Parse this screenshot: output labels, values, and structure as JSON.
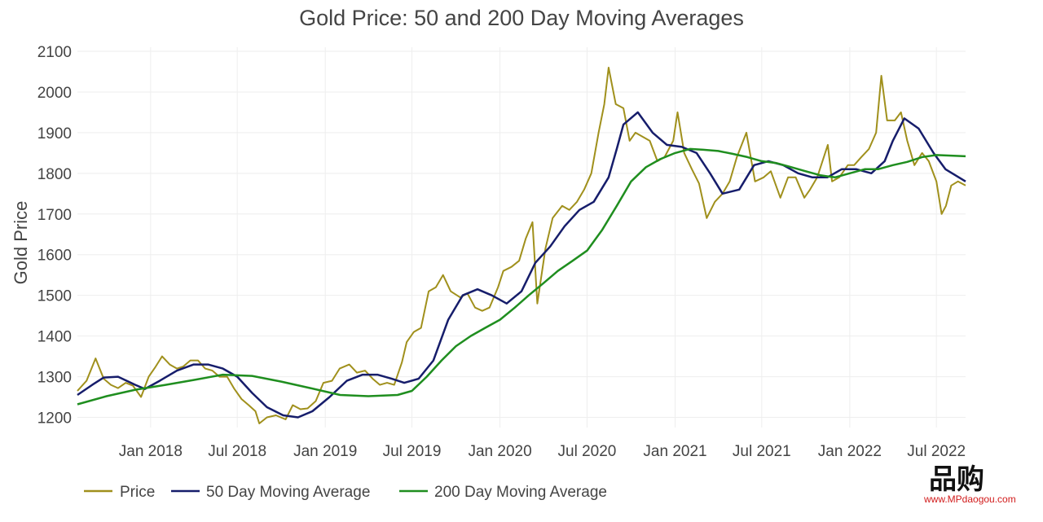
{
  "watermark": {
    "text": "品购",
    "url": "www.MPdaogou.com"
  },
  "colors": {
    "price": "#a0901c",
    "ma50": "#161d6b",
    "ma200": "#1f8e1f"
  },
  "chart_data": {
    "type": "line",
    "title": "Gold Price: 50 and 200 Day Moving Averages",
    "xlabel": "",
    "ylabel": "Gold Price",
    "xlim": [
      "2017-08-01",
      "2022-08-31"
    ],
    "ylim": [
      1175,
      2110
    ],
    "yticks": [
      1200,
      1300,
      1400,
      1500,
      1600,
      1700,
      1800,
      1900,
      2000,
      2100
    ],
    "xticks": [
      {
        "date": "2018-01-01",
        "label": "Jan 2018"
      },
      {
        "date": "2018-07-01",
        "label": "Jul 2018"
      },
      {
        "date": "2019-01-01",
        "label": "Jan 2019"
      },
      {
        "date": "2019-07-01",
        "label": "Jul 2019"
      },
      {
        "date": "2020-01-01",
        "label": "Jan 2020"
      },
      {
        "date": "2020-07-01",
        "label": "Jul 2020"
      },
      {
        "date": "2021-01-01",
        "label": "Jan 2021"
      },
      {
        "date": "2021-07-01",
        "label": "Jul 2021"
      },
      {
        "date": "2022-01-01",
        "label": "Jan 2022"
      },
      {
        "date": "2022-07-01",
        "label": "Jul 2022"
      }
    ],
    "legend_position": "bottom-left",
    "grid": true,
    "series": [
      {
        "name": "Price",
        "x": [
          "2017-08-01",
          "2017-08-20",
          "2017-09-08",
          "2017-09-25",
          "2017-10-10",
          "2017-10-25",
          "2017-11-10",
          "2017-11-25",
          "2017-12-12",
          "2017-12-28",
          "2018-01-10",
          "2018-01-25",
          "2018-02-10",
          "2018-02-25",
          "2018-03-10",
          "2018-03-25",
          "2018-04-10",
          "2018-04-25",
          "2018-05-10",
          "2018-05-25",
          "2018-06-10",
          "2018-06-25",
          "2018-07-10",
          "2018-07-25",
          "2018-08-08",
          "2018-08-16",
          "2018-09-01",
          "2018-09-20",
          "2018-10-10",
          "2018-10-25",
          "2018-11-10",
          "2018-11-25",
          "2018-12-12",
          "2018-12-28",
          "2019-01-15",
          "2019-01-31",
          "2019-02-20",
          "2019-03-08",
          "2019-03-25",
          "2019-04-10",
          "2019-04-25",
          "2019-05-10",
          "2019-05-25",
          "2019-06-10",
          "2019-06-20",
          "2019-07-05",
          "2019-07-20",
          "2019-08-05",
          "2019-08-20",
          "2019-09-04",
          "2019-09-20",
          "2019-10-10",
          "2019-10-25",
          "2019-11-10",
          "2019-11-25",
          "2019-12-10",
          "2019-12-28",
          "2020-01-08",
          "2020-01-25",
          "2020-02-10",
          "2020-02-24",
          "2020-03-09",
          "2020-03-19",
          "2020-04-05",
          "2020-04-20",
          "2020-05-10",
          "2020-05-25",
          "2020-06-10",
          "2020-06-25",
          "2020-07-10",
          "2020-07-25",
          "2020-08-06",
          "2020-08-15",
          "2020-08-30",
          "2020-09-15",
          "2020-09-28",
          "2020-10-10",
          "2020-10-25",
          "2020-11-09",
          "2020-11-25",
          "2020-12-10",
          "2020-12-28",
          "2021-01-06",
          "2021-01-20",
          "2021-02-05",
          "2021-02-20",
          "2021-03-08",
          "2021-03-25",
          "2021-04-10",
          "2021-04-25",
          "2021-05-10",
          "2021-05-30",
          "2021-06-17",
          "2021-07-05",
          "2021-07-20",
          "2021-08-09",
          "2021-08-25",
          "2021-09-10",
          "2021-09-28",
          "2021-10-10",
          "2021-10-25",
          "2021-11-16",
          "2021-11-25",
          "2021-12-10",
          "2021-12-28",
          "2022-01-10",
          "2022-01-25",
          "2022-02-10",
          "2022-02-25",
          "2022-03-08",
          "2022-03-20",
          "2022-04-05",
          "2022-04-18",
          "2022-05-01",
          "2022-05-16",
          "2022-06-01",
          "2022-06-15",
          "2022-07-01",
          "2022-07-12",
          "2022-07-21",
          "2022-08-01",
          "2022-08-15",
          "2022-08-31"
        ],
        "y": [
          1265,
          1290,
          1345,
          1295,
          1280,
          1272,
          1285,
          1278,
          1250,
          1300,
          1322,
          1350,
          1330,
          1320,
          1325,
          1340,
          1340,
          1320,
          1315,
          1300,
          1300,
          1270,
          1245,
          1230,
          1215,
          1185,
          1200,
          1205,
          1195,
          1230,
          1220,
          1222,
          1240,
          1285,
          1290,
          1320,
          1330,
          1310,
          1315,
          1295,
          1280,
          1285,
          1280,
          1335,
          1385,
          1410,
          1420,
          1510,
          1520,
          1550,
          1510,
          1495,
          1505,
          1470,
          1462,
          1470,
          1520,
          1560,
          1570,
          1585,
          1640,
          1680,
          1480,
          1615,
          1690,
          1720,
          1710,
          1730,
          1760,
          1800,
          1900,
          1970,
          2060,
          1970,
          1960,
          1880,
          1900,
          1890,
          1880,
          1830,
          1840,
          1880,
          1950,
          1850,
          1810,
          1775,
          1690,
          1730,
          1750,
          1780,
          1840,
          1900,
          1780,
          1790,
          1805,
          1740,
          1790,
          1790,
          1740,
          1760,
          1790,
          1870,
          1780,
          1790,
          1820,
          1820,
          1840,
          1860,
          1900,
          2040,
          1930,
          1930,
          1950,
          1880,
          1820,
          1850,
          1830,
          1780,
          1700,
          1720,
          1770,
          1780,
          1770
        ]
      },
      {
        "name": "50 Day Moving Average",
        "x": [
          "2017-08-01",
          "2017-09-01",
          "2017-09-25",
          "2017-10-25",
          "2017-11-30",
          "2017-12-20",
          "2018-01-20",
          "2018-02-25",
          "2018-04-01",
          "2018-05-01",
          "2018-06-01",
          "2018-07-01",
          "2018-08-01",
          "2018-09-01",
          "2018-10-05",
          "2018-11-05",
          "2018-12-05",
          "2019-01-10",
          "2019-02-15",
          "2019-03-20",
          "2019-04-20",
          "2019-05-20",
          "2019-06-15",
          "2019-07-15",
          "2019-08-15",
          "2019-09-15",
          "2019-10-15",
          "2019-11-15",
          "2019-12-15",
          "2020-01-15",
          "2020-02-15",
          "2020-03-15",
          "2020-04-15",
          "2020-05-15",
          "2020-06-15",
          "2020-07-15",
          "2020-08-15",
          "2020-09-01",
          "2020-09-15",
          "2020-10-15",
          "2020-11-15",
          "2020-12-15",
          "2021-01-15",
          "2021-02-15",
          "2021-03-15",
          "2021-04-10",
          "2021-05-15",
          "2021-06-15",
          "2021-07-15",
          "2021-08-15",
          "2021-09-15",
          "2021-10-15",
          "2021-11-15",
          "2021-12-15",
          "2022-01-15",
          "2022-02-15",
          "2022-03-15",
          "2022-04-01",
          "2022-04-25",
          "2022-05-25",
          "2022-06-25",
          "2022-07-20",
          "2022-08-31"
        ],
        "y": [
          1255,
          1280,
          1298,
          1300,
          1280,
          1270,
          1290,
          1315,
          1330,
          1330,
          1320,
          1300,
          1260,
          1225,
          1205,
          1200,
          1215,
          1250,
          1290,
          1305,
          1305,
          1295,
          1285,
          1295,
          1340,
          1440,
          1500,
          1515,
          1500,
          1480,
          1510,
          1580,
          1620,
          1670,
          1710,
          1730,
          1790,
          1860,
          1920,
          1950,
          1900,
          1870,
          1865,
          1850,
          1800,
          1750,
          1760,
          1820,
          1830,
          1820,
          1800,
          1790,
          1790,
          1810,
          1810,
          1800,
          1830,
          1880,
          1935,
          1910,
          1850,
          1810,
          1780
        ]
      },
      {
        "name": "200 Day Moving Average",
        "x": [
          "2017-08-01",
          "2017-10-01",
          "2017-12-01",
          "2018-02-01",
          "2018-04-01",
          "2018-06-01",
          "2018-08-01",
          "2018-10-01",
          "2018-12-01",
          "2019-02-01",
          "2019-04-01",
          "2019-06-01",
          "2019-07-01",
          "2019-08-01",
          "2019-09-01",
          "2019-10-01",
          "2019-11-01",
          "2019-12-01",
          "2020-01-01",
          "2020-02-01",
          "2020-03-01",
          "2020-04-01",
          "2020-05-01",
          "2020-06-01",
          "2020-07-01",
          "2020-08-01",
          "2020-09-01",
          "2020-10-01",
          "2020-11-01",
          "2020-12-01",
          "2021-01-01",
          "2021-02-01",
          "2021-03-01",
          "2021-04-01",
          "2021-05-01",
          "2021-06-01",
          "2021-07-01",
          "2021-08-01",
          "2021-09-01",
          "2021-10-01",
          "2021-11-01",
          "2021-12-01",
          "2022-01-01",
          "2022-02-01",
          "2022-03-01",
          "2022-04-01",
          "2022-05-01",
          "2022-06-01",
          "2022-07-01",
          "2022-08-31"
        ],
        "y": [
          1232,
          1252,
          1268,
          1280,
          1292,
          1305,
          1302,
          1288,
          1272,
          1255,
          1252,
          1255,
          1265,
          1300,
          1340,
          1375,
          1400,
          1420,
          1440,
          1470,
          1500,
          1530,
          1560,
          1585,
          1610,
          1660,
          1720,
          1780,
          1815,
          1835,
          1850,
          1860,
          1858,
          1855,
          1848,
          1840,
          1830,
          1825,
          1815,
          1805,
          1795,
          1790,
          1800,
          1810,
          1810,
          1820,
          1828,
          1840,
          1845,
          1842
        ]
      }
    ]
  }
}
